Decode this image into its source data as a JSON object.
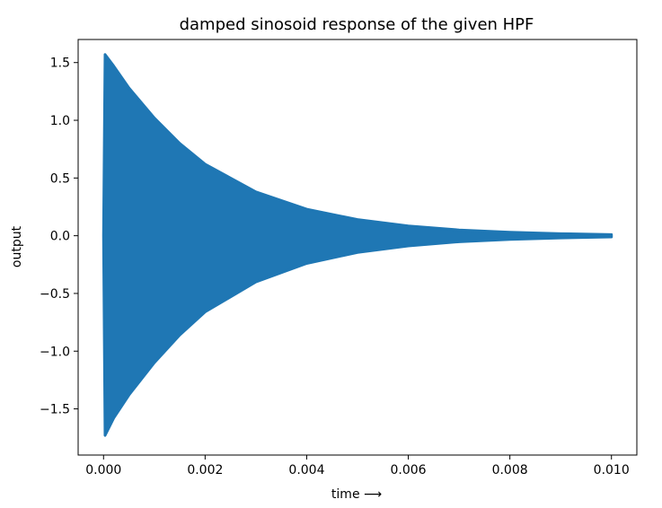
{
  "chart_data": {
    "type": "line",
    "title": "damped sinosoid response of the given HPF",
    "xlabel": "time  ⟶",
    "ylabel": "output",
    "xlim": [
      -0.0005,
      0.0105
    ],
    "ylim": [
      -1.9,
      1.7
    ],
    "xticks": [
      {
        "value": 0.0,
        "label": "0.000"
      },
      {
        "value": 0.002,
        "label": "0.002"
      },
      {
        "value": 0.004,
        "label": "0.004"
      },
      {
        "value": 0.006,
        "label": "0.006"
      },
      {
        "value": 0.008,
        "label": "0.008"
      },
      {
        "value": 0.01,
        "label": "0.010"
      }
    ],
    "yticks": [
      {
        "value": 1.5,
        "label": "1.5"
      },
      {
        "value": 1.0,
        "label": "1.0"
      },
      {
        "value": 0.5,
        "label": "0.5"
      },
      {
        "value": 0.0,
        "label": "0.0"
      },
      {
        "value": -0.5,
        "label": "−0.5"
      },
      {
        "value": -1.0,
        "label": "−1.0"
      },
      {
        "value": -1.5,
        "label": "−1.5"
      }
    ],
    "grid": false,
    "series": [
      {
        "color": "#1f77b4",
        "x": [
          0.0,
          3e-05,
          0.0002,
          0.0005,
          0.001,
          0.0015,
          0.002,
          0.003,
          0.004,
          0.005,
          0.006,
          0.007,
          0.008,
          0.009,
          0.01
        ],
        "upper": [
          0.0,
          1.57,
          1.47,
          1.28,
          1.02,
          0.8,
          0.62,
          0.38,
          0.23,
          0.14,
          0.085,
          0.05,
          0.03,
          0.018,
          0.01
        ],
        "lower": [
          0.0,
          -1.73,
          -1.58,
          -1.38,
          -1.1,
          -0.86,
          -0.66,
          -0.4,
          -0.24,
          -0.145,
          -0.088,
          -0.052,
          -0.032,
          -0.019,
          -0.011
        ]
      }
    ]
  }
}
